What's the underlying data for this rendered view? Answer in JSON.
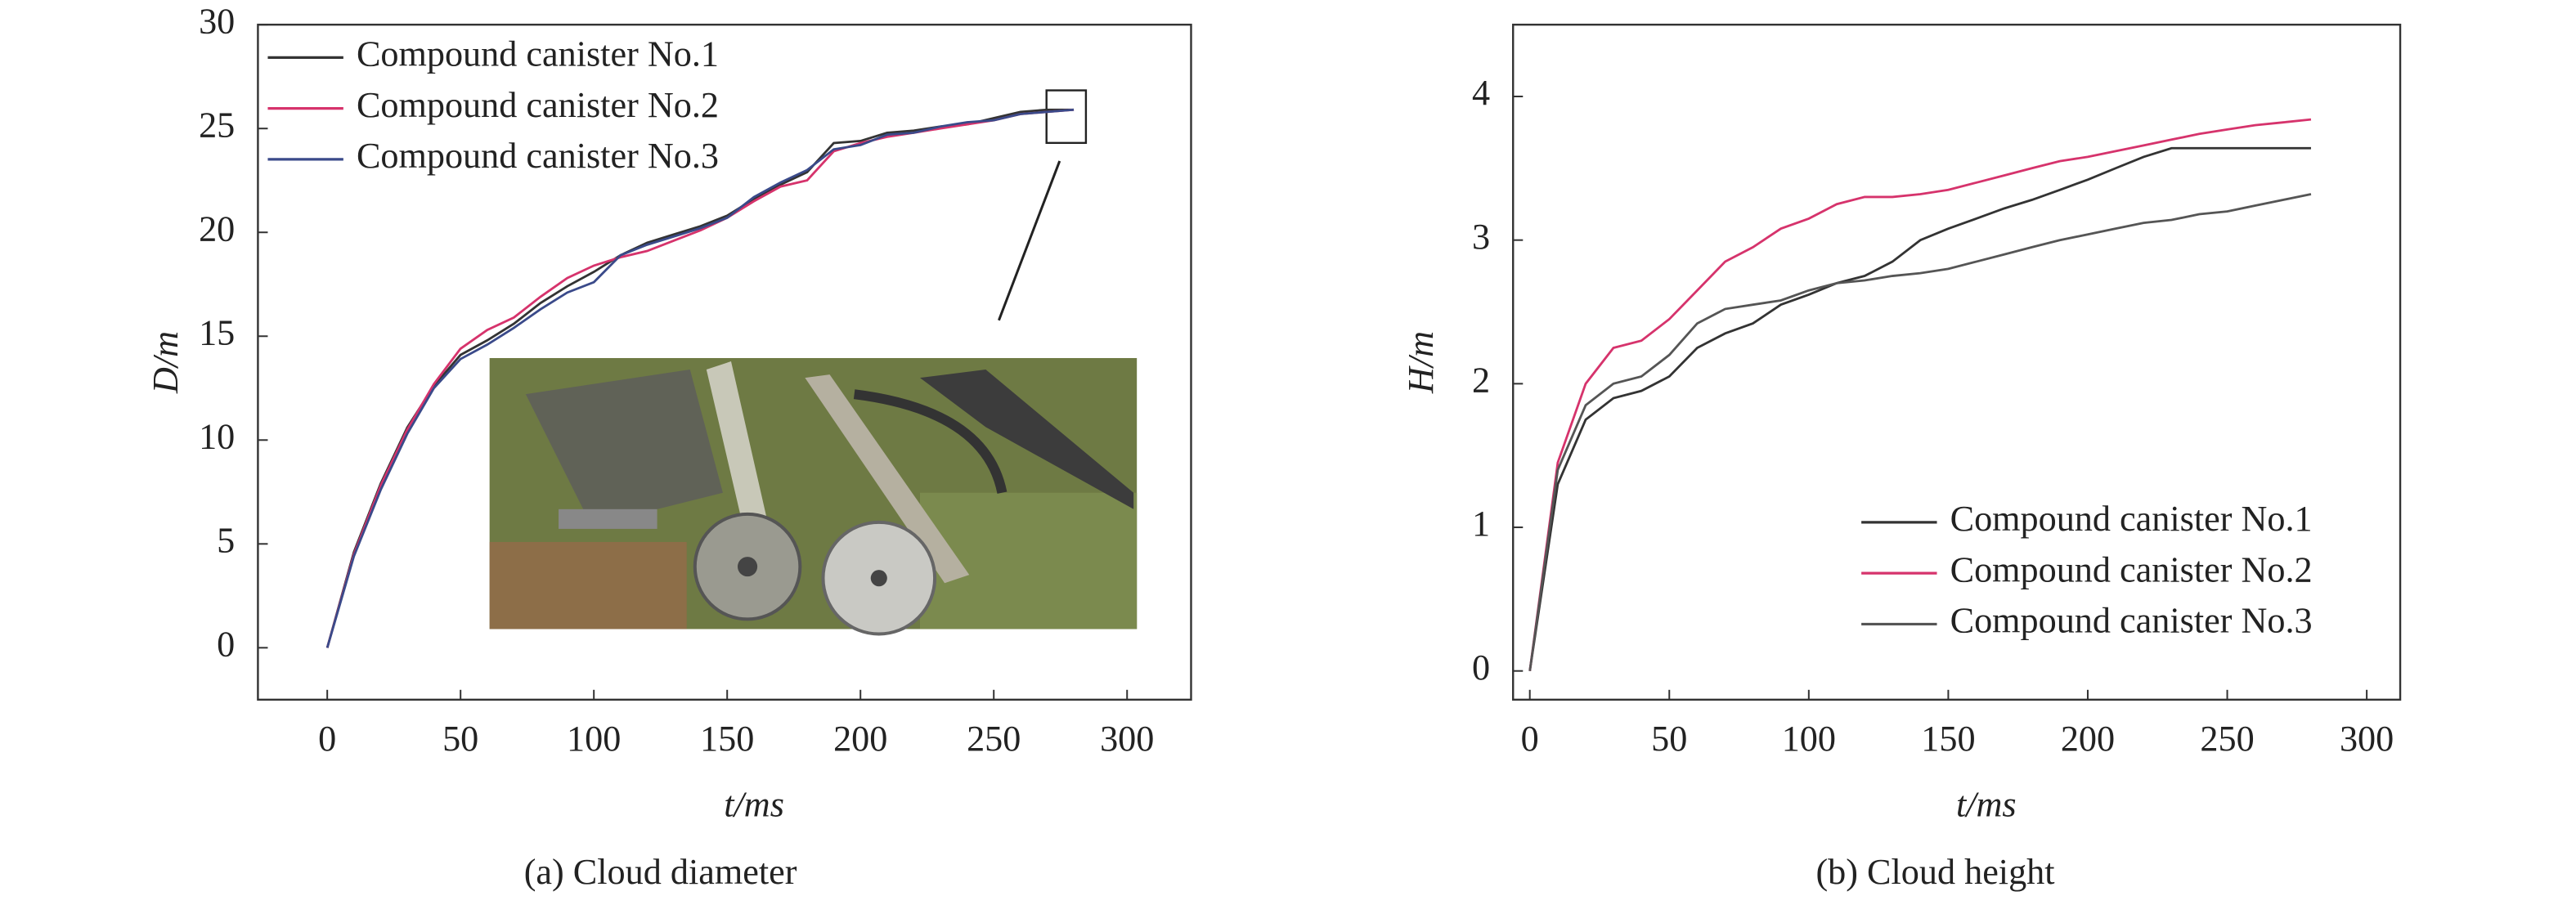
{
  "chart_data": [
    {
      "type": "line",
      "caption": "(a) Cloud diameter",
      "xlabel": "t/ms",
      "ylabel": "D/m",
      "x": [
        0,
        10,
        20,
        30,
        40,
        50,
        60,
        70,
        80,
        90,
        100,
        110,
        120,
        130,
        140,
        150,
        160,
        170,
        180,
        190,
        200,
        210,
        220,
        230,
        240,
        250,
        260,
        270,
        280
      ],
      "series": [
        {
          "name": "Compound canister No.1",
          "color": "#333333",
          "values": [
            0,
            4.6,
            7.9,
            10.6,
            12.6,
            14.1,
            14.8,
            15.6,
            16.6,
            17.4,
            18.1,
            18.9,
            19.5,
            19.9,
            20.3,
            20.8,
            21.6,
            22.3,
            22.9,
            24.3,
            24.4,
            24.8,
            24.9,
            25.1,
            25.2,
            25.5,
            25.8,
            25.9,
            25.9
          ]
        },
        {
          "name": "Compound canister No.2",
          "color": "#d6336c",
          "values": [
            0,
            4.5,
            7.8,
            10.5,
            12.7,
            14.4,
            15.3,
            15.9,
            16.9,
            17.8,
            18.4,
            18.8,
            19.1,
            19.6,
            20.1,
            20.7,
            21.5,
            22.2,
            22.5,
            23.9,
            24.3,
            24.6,
            24.8,
            25.0,
            25.2,
            25.4,
            25.7,
            25.8,
            25.9
          ]
        },
        {
          "name": "Compound canister No.3",
          "color": "#3a4a8a",
          "values": [
            0,
            4.4,
            7.6,
            10.3,
            12.5,
            13.9,
            14.6,
            15.4,
            16.3,
            17.1,
            17.6,
            18.9,
            19.4,
            19.8,
            20.2,
            20.7,
            21.7,
            22.4,
            23.0,
            24.0,
            24.2,
            24.7,
            24.8,
            25.1,
            25.3,
            25.4,
            25.7,
            25.8,
            25.9
          ]
        }
      ],
      "xlim": [
        -26,
        324
      ],
      "ylim": [
        -2.5,
        30
      ],
      "xticks": [
        0,
        50,
        100,
        150,
        200,
        250,
        300
      ],
      "yticks": [
        0,
        5,
        10,
        15,
        20,
        25,
        30
      ],
      "legend": "upper left"
    },
    {
      "type": "line",
      "caption": "(b) Cloud height",
      "xlabel": "t/ms",
      "ylabel": "H/m",
      "x": [
        0,
        10,
        20,
        30,
        40,
        50,
        60,
        70,
        80,
        90,
        100,
        110,
        120,
        130,
        140,
        150,
        160,
        170,
        180,
        190,
        200,
        210,
        220,
        230,
        240,
        250,
        260,
        270,
        280
      ],
      "series": [
        {
          "name": "Compound canister No.1",
          "color": "#333333",
          "values": [
            0,
            1.3,
            1.75,
            1.9,
            1.95,
            2.05,
            2.25,
            2.35,
            2.42,
            2.55,
            2.62,
            2.7,
            2.75,
            2.85,
            3.0,
            3.08,
            3.15,
            3.22,
            3.28,
            3.35,
            3.42,
            3.5,
            3.58,
            3.64,
            3.64,
            3.64,
            3.64,
            3.64,
            3.64
          ]
        },
        {
          "name": "Compound canister No.2",
          "color": "#d6336c",
          "values": [
            0,
            1.45,
            2.0,
            2.25,
            2.3,
            2.45,
            2.65,
            2.85,
            2.95,
            3.08,
            3.15,
            3.25,
            3.3,
            3.3,
            3.32,
            3.35,
            3.4,
            3.45,
            3.5,
            3.55,
            3.58,
            3.62,
            3.66,
            3.7,
            3.74,
            3.77,
            3.8,
            3.82,
            3.84
          ]
        },
        {
          "name": "Compound canister No.3",
          "color": "#555555",
          "values": [
            0,
            1.4,
            1.85,
            2.0,
            2.05,
            2.2,
            2.42,
            2.52,
            2.55,
            2.58,
            2.65,
            2.7,
            2.72,
            2.75,
            2.77,
            2.8,
            2.85,
            2.9,
            2.95,
            3.0,
            3.04,
            3.08,
            3.12,
            3.14,
            3.18,
            3.2,
            3.24,
            3.28,
            3.32
          ]
        }
      ],
      "xlim": [
        -6,
        312
      ],
      "ylim": [
        -0.2,
        4.5
      ],
      "xticks": [
        0,
        50,
        100,
        150,
        200,
        250,
        300
      ],
      "yticks": [
        0,
        1,
        2,
        3,
        4
      ],
      "legend": "lower right"
    }
  ]
}
